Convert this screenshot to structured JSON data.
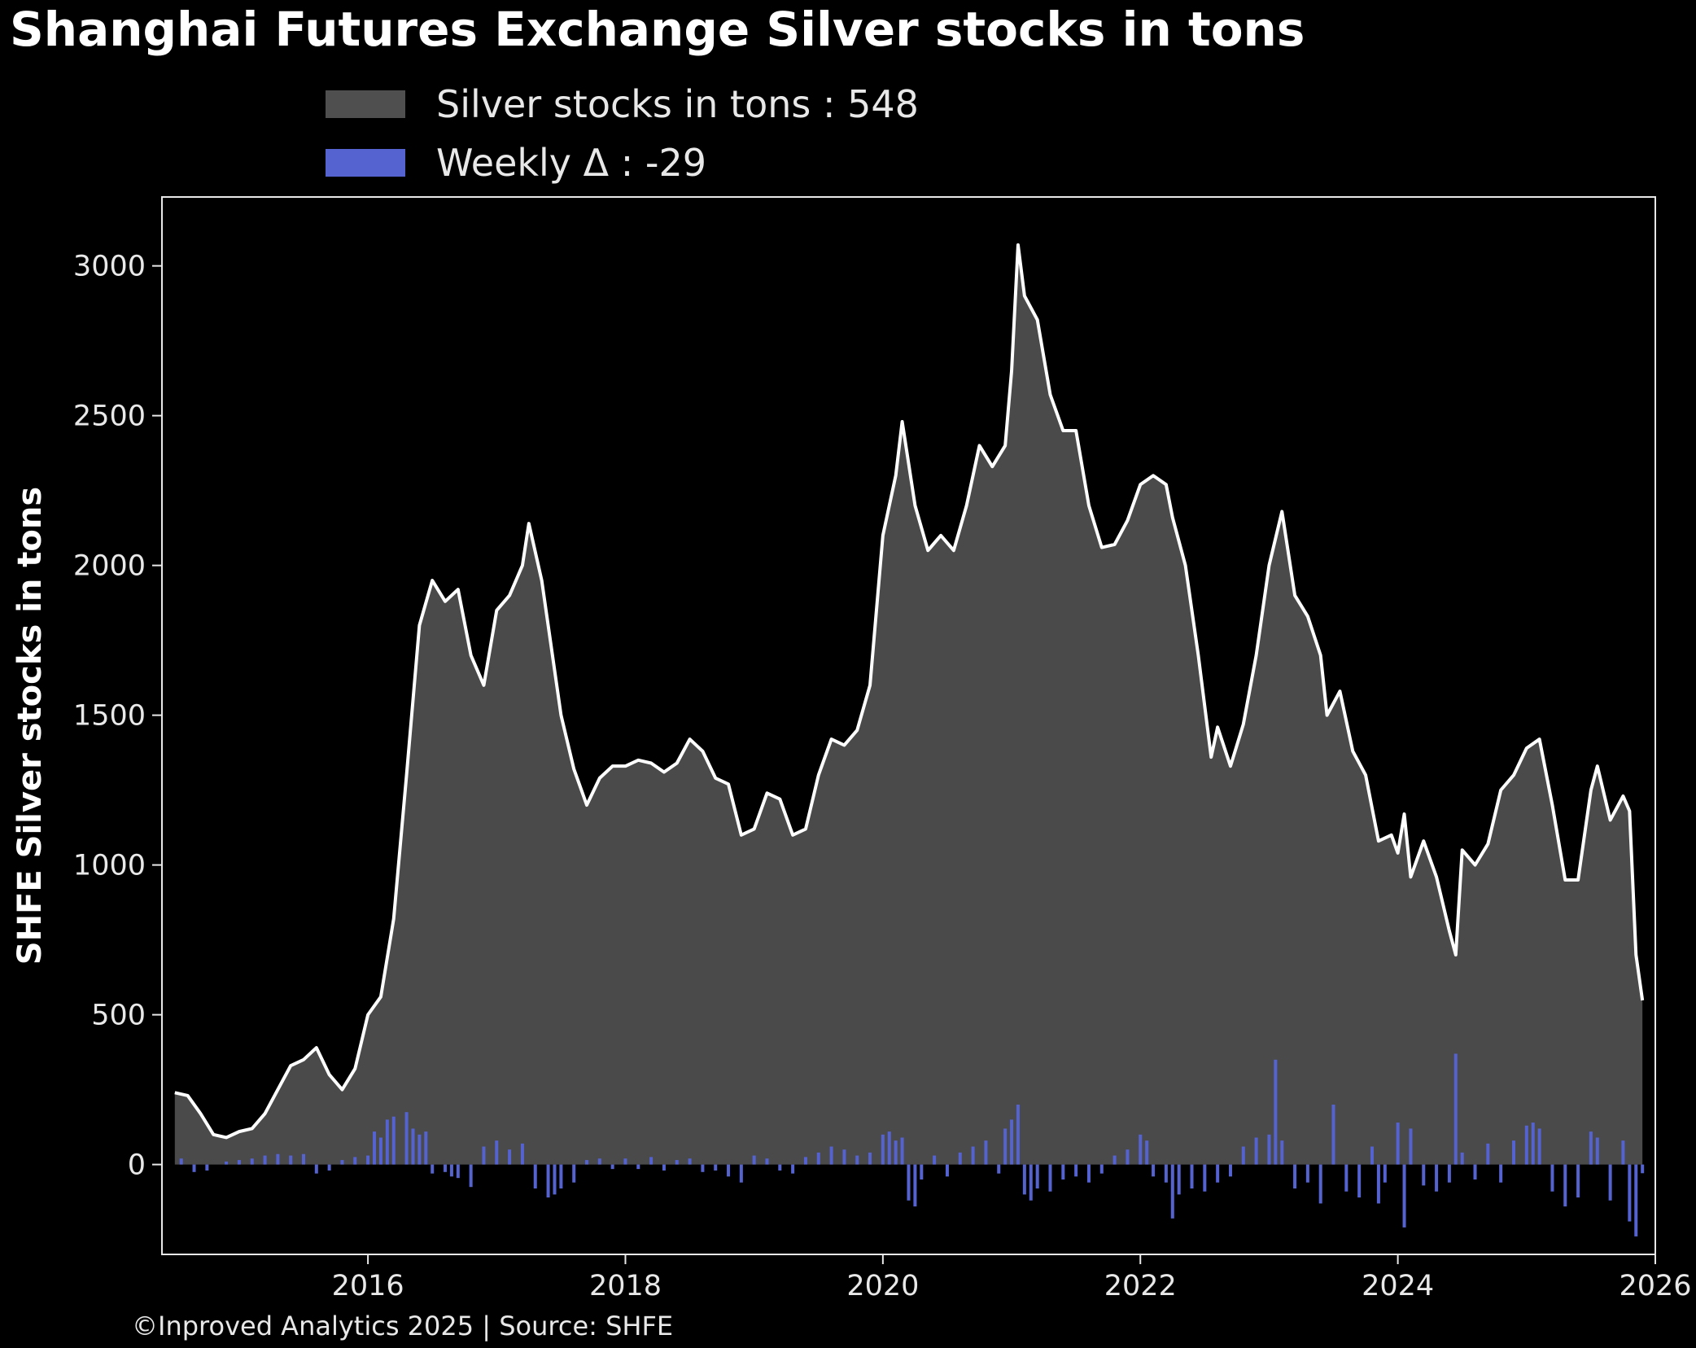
{
  "chart_data": {
    "type": "area",
    "title": "Shanghai Futures Exchange Silver stocks in tons",
    "ylabel": "SHFE Silver stocks in tons",
    "xlabel": "",
    "xlim": [
      2014.4,
      2026.0
    ],
    "ylim": [
      -300,
      3230
    ],
    "x_ticks": [
      "2016",
      "2018",
      "2020",
      "2022",
      "2024",
      "2026"
    ],
    "y_ticks": [
      "0",
      "500",
      "1000",
      "1500",
      "2000",
      "2500",
      "3000"
    ],
    "legend_position": "top-center",
    "grid": false,
    "series": [
      {
        "name": "Silver stocks in tons : 548",
        "kind": "area",
        "fill_color": "#4a4a4a",
        "line_color": "#ffffff",
        "points": [
          [
            2014.5,
            240
          ],
          [
            2014.6,
            230
          ],
          [
            2014.7,
            170
          ],
          [
            2014.8,
            100
          ],
          [
            2014.9,
            90
          ],
          [
            2015.0,
            110
          ],
          [
            2015.1,
            120
          ],
          [
            2015.2,
            170
          ],
          [
            2015.3,
            250
          ],
          [
            2015.4,
            330
          ],
          [
            2015.5,
            350
          ],
          [
            2015.6,
            390
          ],
          [
            2015.7,
            300
          ],
          [
            2015.8,
            250
          ],
          [
            2015.9,
            320
          ],
          [
            2016.0,
            500
          ],
          [
            2016.1,
            560
          ],
          [
            2016.2,
            820
          ],
          [
            2016.3,
            1300
          ],
          [
            2016.4,
            1800
          ],
          [
            2016.5,
            1950
          ],
          [
            2016.6,
            1880
          ],
          [
            2016.7,
            1920
          ],
          [
            2016.8,
            1700
          ],
          [
            2016.9,
            1600
          ],
          [
            2017.0,
            1850
          ],
          [
            2017.1,
            1900
          ],
          [
            2017.2,
            2000
          ],
          [
            2017.25,
            2140
          ],
          [
            2017.35,
            1950
          ],
          [
            2017.5,
            1500
          ],
          [
            2017.6,
            1320
          ],
          [
            2017.7,
            1200
          ],
          [
            2017.8,
            1290
          ],
          [
            2017.9,
            1330
          ],
          [
            2018.0,
            1330
          ],
          [
            2018.1,
            1350
          ],
          [
            2018.2,
            1340
          ],
          [
            2018.3,
            1310
          ],
          [
            2018.4,
            1340
          ],
          [
            2018.5,
            1420
          ],
          [
            2018.6,
            1380
          ],
          [
            2018.7,
            1290
          ],
          [
            2018.8,
            1270
          ],
          [
            2018.9,
            1100
          ],
          [
            2019.0,
            1120
          ],
          [
            2019.1,
            1240
          ],
          [
            2019.2,
            1220
          ],
          [
            2019.3,
            1100
          ],
          [
            2019.4,
            1120
          ],
          [
            2019.5,
            1300
          ],
          [
            2019.6,
            1420
          ],
          [
            2019.7,
            1400
          ],
          [
            2019.8,
            1450
          ],
          [
            2019.9,
            1600
          ],
          [
            2020.0,
            2100
          ],
          [
            2020.1,
            2300
          ],
          [
            2020.15,
            2480
          ],
          [
            2020.25,
            2200
          ],
          [
            2020.35,
            2050
          ],
          [
            2020.45,
            2100
          ],
          [
            2020.55,
            2050
          ],
          [
            2020.65,
            2200
          ],
          [
            2020.75,
            2400
          ],
          [
            2020.85,
            2330
          ],
          [
            2020.95,
            2400
          ],
          [
            2021.0,
            2650
          ],
          [
            2021.05,
            3070
          ],
          [
            2021.1,
            2900
          ],
          [
            2021.2,
            2820
          ],
          [
            2021.3,
            2570
          ],
          [
            2021.4,
            2450
          ],
          [
            2021.5,
            2450
          ],
          [
            2021.6,
            2200
          ],
          [
            2021.7,
            2060
          ],
          [
            2021.8,
            2070
          ],
          [
            2021.9,
            2150
          ],
          [
            2022.0,
            2270
          ],
          [
            2022.1,
            2300
          ],
          [
            2022.2,
            2270
          ],
          [
            2022.25,
            2160
          ],
          [
            2022.35,
            2000
          ],
          [
            2022.45,
            1700
          ],
          [
            2022.55,
            1360
          ],
          [
            2022.6,
            1460
          ],
          [
            2022.7,
            1330
          ],
          [
            2022.8,
            1470
          ],
          [
            2022.9,
            1700
          ],
          [
            2023.0,
            2000
          ],
          [
            2023.1,
            2180
          ],
          [
            2023.2,
            1900
          ],
          [
            2023.3,
            1830
          ],
          [
            2023.4,
            1700
          ],
          [
            2023.45,
            1500
          ],
          [
            2023.55,
            1580
          ],
          [
            2023.65,
            1380
          ],
          [
            2023.75,
            1300
          ],
          [
            2023.85,
            1080
          ],
          [
            2023.95,
            1100
          ],
          [
            2024.0,
            1040
          ],
          [
            2024.05,
            1170
          ],
          [
            2024.1,
            960
          ],
          [
            2024.2,
            1080
          ],
          [
            2024.3,
            960
          ],
          [
            2024.4,
            780
          ],
          [
            2024.45,
            700
          ],
          [
            2024.5,
            1050
          ],
          [
            2024.6,
            1000
          ],
          [
            2024.7,
            1070
          ],
          [
            2024.8,
            1250
          ],
          [
            2024.9,
            1300
          ],
          [
            2025.0,
            1390
          ],
          [
            2025.1,
            1420
          ],
          [
            2025.2,
            1200
          ],
          [
            2025.3,
            950
          ],
          [
            2025.4,
            950
          ],
          [
            2025.5,
            1250
          ],
          [
            2025.55,
            1330
          ],
          [
            2025.65,
            1150
          ],
          [
            2025.75,
            1230
          ],
          [
            2025.8,
            1180
          ],
          [
            2025.85,
            700
          ],
          [
            2025.9,
            548
          ]
        ]
      },
      {
        "name": "Weekly Δ : -29",
        "kind": "bars",
        "color": "#5563d0",
        "points": [
          [
            2014.55,
            20
          ],
          [
            2014.65,
            -25
          ],
          [
            2014.75,
            -20
          ],
          [
            2014.9,
            10
          ],
          [
            2015.0,
            15
          ],
          [
            2015.1,
            20
          ],
          [
            2015.2,
            30
          ],
          [
            2015.3,
            35
          ],
          [
            2015.4,
            30
          ],
          [
            2015.5,
            35
          ],
          [
            2015.6,
            -30
          ],
          [
            2015.7,
            -20
          ],
          [
            2015.8,
            15
          ],
          [
            2015.9,
            25
          ],
          [
            2016.0,
            30
          ],
          [
            2016.05,
            110
          ],
          [
            2016.1,
            90
          ],
          [
            2016.15,
            150
          ],
          [
            2016.2,
            160
          ],
          [
            2016.3,
            175
          ],
          [
            2016.35,
            120
          ],
          [
            2016.4,
            100
          ],
          [
            2016.45,
            110
          ],
          [
            2016.5,
            -30
          ],
          [
            2016.6,
            -25
          ],
          [
            2016.65,
            -40
          ],
          [
            2016.7,
            -45
          ],
          [
            2016.8,
            -75
          ],
          [
            2016.9,
            60
          ],
          [
            2017.0,
            80
          ],
          [
            2017.1,
            50
          ],
          [
            2017.2,
            70
          ],
          [
            2017.3,
            -80
          ],
          [
            2017.4,
            -110
          ],
          [
            2017.45,
            -100
          ],
          [
            2017.5,
            -80
          ],
          [
            2017.6,
            -60
          ],
          [
            2017.7,
            15
          ],
          [
            2017.8,
            20
          ],
          [
            2017.9,
            -15
          ],
          [
            2018.0,
            20
          ],
          [
            2018.1,
            -15
          ],
          [
            2018.2,
            25
          ],
          [
            2018.3,
            -20
          ],
          [
            2018.4,
            15
          ],
          [
            2018.5,
            20
          ],
          [
            2018.6,
            -25
          ],
          [
            2018.7,
            -20
          ],
          [
            2018.8,
            -40
          ],
          [
            2018.9,
            -60
          ],
          [
            2019.0,
            30
          ],
          [
            2019.1,
            20
          ],
          [
            2019.2,
            -20
          ],
          [
            2019.3,
            -30
          ],
          [
            2019.4,
            25
          ],
          [
            2019.5,
            40
          ],
          [
            2019.6,
            60
          ],
          [
            2019.7,
            50
          ],
          [
            2019.8,
            30
          ],
          [
            2019.9,
            40
          ],
          [
            2020.0,
            100
          ],
          [
            2020.05,
            110
          ],
          [
            2020.1,
            80
          ],
          [
            2020.15,
            90
          ],
          [
            2020.2,
            -120
          ],
          [
            2020.25,
            -140
          ],
          [
            2020.3,
            -50
          ],
          [
            2020.4,
            30
          ],
          [
            2020.5,
            -40
          ],
          [
            2020.6,
            40
          ],
          [
            2020.7,
            60
          ],
          [
            2020.8,
            80
          ],
          [
            2020.9,
            -30
          ],
          [
            2020.95,
            120
          ],
          [
            2021.0,
            150
          ],
          [
            2021.05,
            200
          ],
          [
            2021.1,
            -100
          ],
          [
            2021.15,
            -120
          ],
          [
            2021.2,
            -80
          ],
          [
            2021.3,
            -90
          ],
          [
            2021.4,
            -50
          ],
          [
            2021.5,
            -40
          ],
          [
            2021.6,
            -60
          ],
          [
            2021.7,
            -30
          ],
          [
            2021.8,
            30
          ],
          [
            2021.9,
            50
          ],
          [
            2022.0,
            100
          ],
          [
            2022.05,
            80
          ],
          [
            2022.1,
            -40
          ],
          [
            2022.2,
            -60
          ],
          [
            2022.25,
            -180
          ],
          [
            2022.3,
            -100
          ],
          [
            2022.4,
            -80
          ],
          [
            2022.5,
            -90
          ],
          [
            2022.6,
            -60
          ],
          [
            2022.7,
            -40
          ],
          [
            2022.8,
            60
          ],
          [
            2022.9,
            90
          ],
          [
            2023.0,
            100
          ],
          [
            2023.05,
            350
          ],
          [
            2023.1,
            80
          ],
          [
            2023.2,
            -80
          ],
          [
            2023.3,
            -60
          ],
          [
            2023.4,
            -130
          ],
          [
            2023.5,
            200
          ],
          [
            2023.6,
            -90
          ],
          [
            2023.7,
            -110
          ],
          [
            2023.8,
            60
          ],
          [
            2023.85,
            -130
          ],
          [
            2023.9,
            -60
          ],
          [
            2024.0,
            140
          ],
          [
            2024.05,
            -210
          ],
          [
            2024.1,
            120
          ],
          [
            2024.2,
            -70
          ],
          [
            2024.3,
            -90
          ],
          [
            2024.4,
            -60
          ],
          [
            2024.45,
            370
          ],
          [
            2024.5,
            40
          ],
          [
            2024.6,
            -50
          ],
          [
            2024.7,
            70
          ],
          [
            2024.8,
            -60
          ],
          [
            2024.9,
            80
          ],
          [
            2025.0,
            130
          ],
          [
            2025.05,
            140
          ],
          [
            2025.1,
            120
          ],
          [
            2025.2,
            -90
          ],
          [
            2025.3,
            -140
          ],
          [
            2025.4,
            -110
          ],
          [
            2025.5,
            110
          ],
          [
            2025.55,
            90
          ],
          [
            2025.65,
            -120
          ],
          [
            2025.75,
            80
          ],
          [
            2025.8,
            -190
          ],
          [
            2025.85,
            -240
          ],
          [
            2025.9,
            -29
          ]
        ]
      }
    ]
  },
  "footer": "©Inproved Analytics 2025 | Source: SHFE"
}
